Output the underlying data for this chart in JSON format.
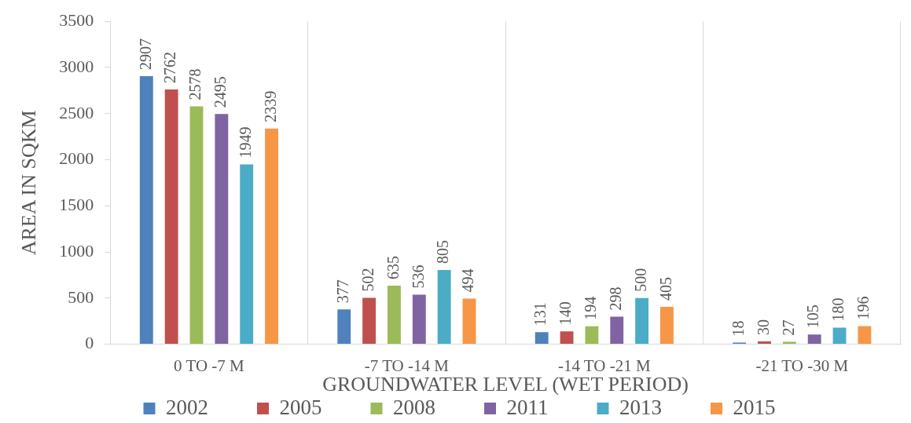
{
  "chart_data": {
    "type": "bar",
    "xlabel": "GROUNDWATER LEVEL (WET PERIOD)",
    "ylabel": "AREA IN SQKM",
    "categories": [
      "0 TO -7 M",
      "-7 TO -14 M",
      "-14 TO -21 M",
      "-21 TO -30 M"
    ],
    "series": [
      {
        "name": "2002",
        "color": "#4f81bd",
        "values": [
          2907,
          377,
          131,
          18
        ]
      },
      {
        "name": "2005",
        "color": "#c0504d",
        "values": [
          2762,
          502,
          140,
          30
        ]
      },
      {
        "name": "2008",
        "color": "#9bbb59",
        "values": [
          2578,
          635,
          194,
          27
        ]
      },
      {
        "name": "2011",
        "color": "#8064a2",
        "values": [
          2495,
          536,
          298,
          105
        ]
      },
      {
        "name": "2013",
        "color": "#4bacc6",
        "values": [
          1949,
          805,
          500,
          180
        ]
      },
      {
        "name": "2015",
        "color": "#f79646",
        "values": [
          2339,
          494,
          405,
          196
        ]
      }
    ],
    "ylim": [
      0,
      3500
    ],
    "yticks": [
      0,
      500,
      1000,
      1500,
      2000,
      2500,
      3000,
      3500
    ],
    "grid": "x",
    "legend": "bottom",
    "data_labels": true
  }
}
